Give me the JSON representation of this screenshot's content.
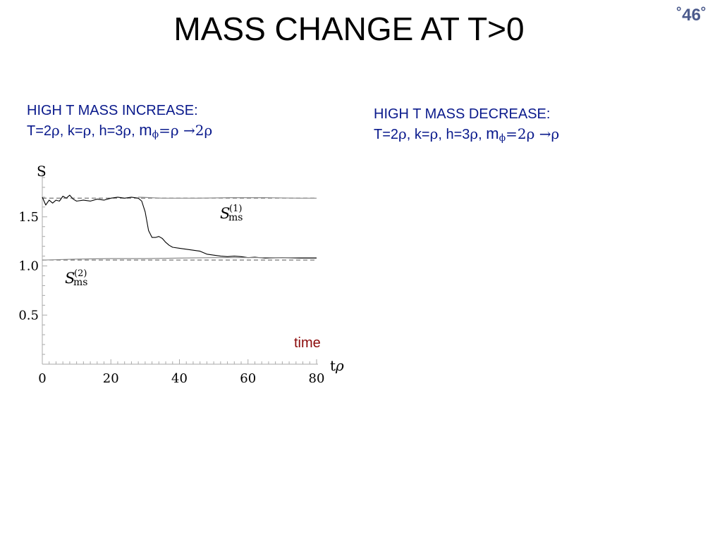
{
  "slide": {
    "title": "MASS CHANGE AT T>0",
    "page_number": "˚46˚"
  },
  "captions": {
    "left": {
      "heading": "HIGH T MASS INCREASE:",
      "params_prefix": "T=2",
      "p1": "ρ",
      "k_text": ", k=",
      "p2": "ρ",
      "h_text": ", h=3",
      "p3": "ρ",
      "sep": ", ",
      "m": "m",
      "phi": "ϕ",
      "mass_value": "=ρ →2ρ"
    },
    "right": {
      "heading": "HIGH T MASS DECREASE:",
      "params_prefix": "T=2",
      "p1": "ρ",
      "k_text": ", k=",
      "p2": "ρ",
      "h_text": ", h=3",
      "p3": "ρ",
      "sep": ", ",
      "m": "m",
      "phi": "ϕ",
      "mass_value": "=2ρ →ρ"
    }
  },
  "chart_data": {
    "type": "line",
    "ylabel": "S",
    "xlabel": "tρ",
    "annotation": "time",
    "xlim": [
      0,
      80
    ],
    "ylim": [
      0,
      1.9
    ],
    "x_ticks": [
      0,
      20,
      40,
      60,
      80
    ],
    "y_ticks": [
      0.5,
      1.0,
      1.5
    ],
    "y_tick_labels": [
      "0.5",
      "1.0",
      "1.5"
    ],
    "grid": false,
    "reference_lines": [
      {
        "name": "S(1)ms",
        "label_main": "S",
        "label_sub": "ms",
        "label_sup": "(1)",
        "y": 1.69,
        "style": "dashed"
      },
      {
        "name": "S(2)ms",
        "label_main": "S",
        "label_sub": "ms",
        "label_sup": "(2)",
        "y": 1.06,
        "style": "dashed"
      }
    ],
    "series": [
      {
        "style": "solid-thin",
        "x": [
          0,
          1,
          2,
          3,
          4,
          5,
          6,
          7,
          8,
          9,
          10,
          12,
          14,
          16,
          18,
          20,
          22,
          24,
          26,
          28,
          29,
          30,
          31,
          32,
          33,
          34,
          35,
          36,
          37,
          38,
          40,
          42,
          44,
          46,
          48,
          50,
          52,
          54,
          56,
          58,
          60,
          62,
          65,
          70,
          75,
          80
        ],
        "y": [
          1.7,
          1.62,
          1.67,
          1.64,
          1.67,
          1.66,
          1.71,
          1.69,
          1.72,
          1.68,
          1.66,
          1.67,
          1.66,
          1.68,
          1.67,
          1.69,
          1.7,
          1.69,
          1.7,
          1.69,
          1.66,
          1.55,
          1.36,
          1.29,
          1.29,
          1.3,
          1.28,
          1.24,
          1.21,
          1.19,
          1.18,
          1.17,
          1.16,
          1.15,
          1.12,
          1.11,
          1.1,
          1.095,
          1.1,
          1.095,
          1.085,
          1.09,
          1.08,
          1.085,
          1.08,
          1.08
        ]
      },
      {
        "style": "solid-gray",
        "x": [
          0,
          10,
          20,
          30,
          40,
          50,
          60,
          70,
          80
        ],
        "y": [
          1.06,
          1.07,
          1.075,
          1.075,
          1.08,
          1.085,
          1.085,
          1.085,
          1.085
        ]
      },
      {
        "style": "solid-gray",
        "x": [
          28,
          35,
          45,
          55,
          65,
          75,
          80
        ],
        "y": [
          1.7,
          1.69,
          1.69,
          1.695,
          1.695,
          1.69,
          1.69
        ]
      }
    ]
  },
  "colors": {
    "title": "#000000",
    "caption": "#0a1a8c",
    "page_number": "#4b5a8c",
    "annotation": "#8b0a0a",
    "curve": "#000000",
    "curve_gray": "#8a8a8a",
    "axis": "#aaaaaa"
  }
}
